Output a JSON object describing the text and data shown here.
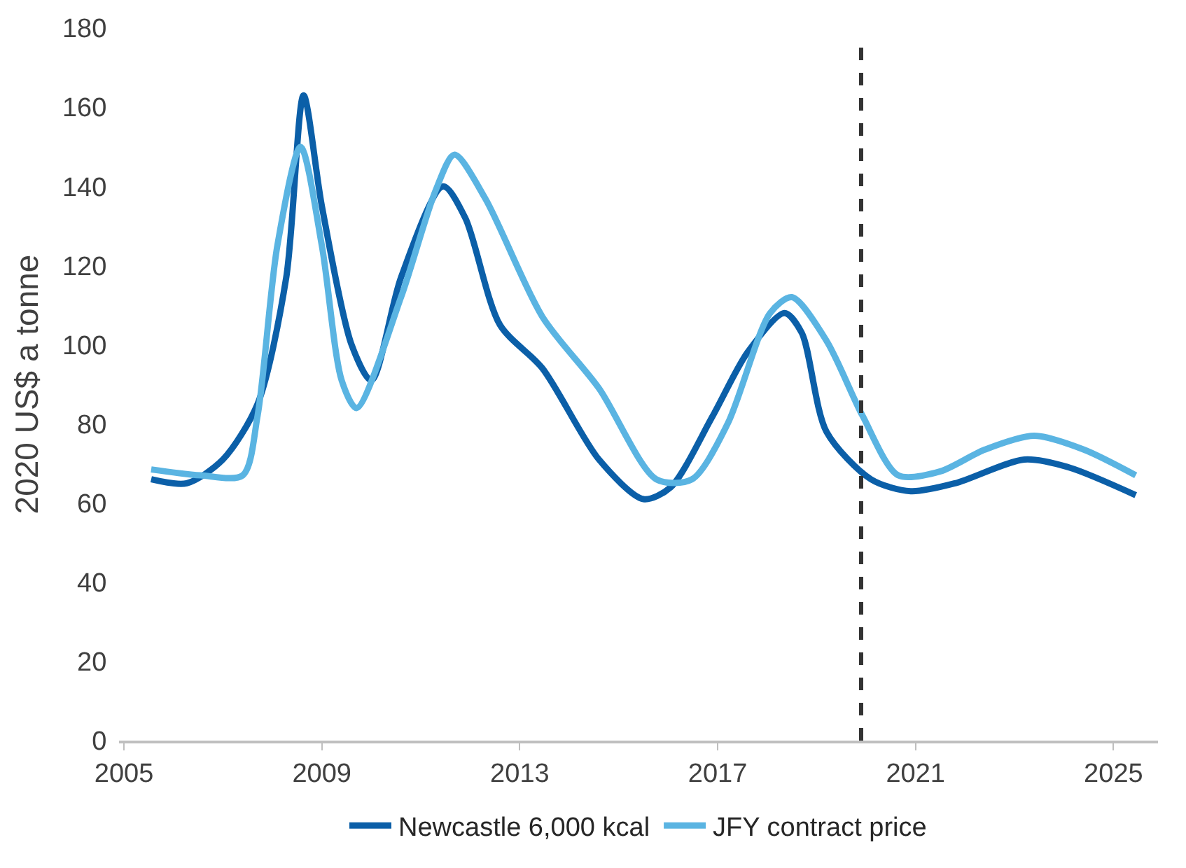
{
  "chart_data": {
    "type": "line",
    "ylabel": "2020 US$ a tonne",
    "xlim": [
      2004.9,
      2025.9
    ],
    "xticks": [
      2005,
      2009,
      2013,
      2017,
      2021,
      2025
    ],
    "ylim": [
      0,
      180
    ],
    "yticks": [
      0,
      20,
      40,
      60,
      80,
      100,
      120,
      140,
      160,
      180
    ],
    "legend": "bottom",
    "marker": "none",
    "line_style": "solid",
    "ref_lines": [
      {
        "axis": "x",
        "value": 2019.9,
        "color": "#333333",
        "line_style": "dashed"
      }
    ],
    "series": [
      {
        "name": "Newcastle 6,000 kcal",
        "color": "#0b5fa8",
        "x": [
          2005.55,
          2006.27,
          2007.0,
          2007.7,
          2008.28,
          2008.63,
          2009.0,
          2009.6,
          2010.0,
          2010.6,
          2011.45,
          2011.9,
          2012.6,
          2013.46,
          2014.6,
          2015.5,
          2016.05,
          2016.9,
          2017.6,
          2018.35,
          2018.7,
          2019.2,
          2020.1,
          2020.9,
          2021.8,
          2023.2,
          2024.1,
          2025.45
        ],
        "values": [
          66,
          65,
          71,
          85,
          117,
          163,
          135,
          100,
          91,
          117,
          140,
          132,
          105,
          94,
          71,
          61,
          64,
          82,
          98,
          108,
          103,
          78,
          66,
          63,
          65,
          71,
          69,
          62
        ]
      },
      {
        "name": "JFY contract price",
        "color": "#5ab4e2",
        "x": [
          2005.55,
          2006.55,
          2007.4,
          2007.7,
          2008.1,
          2008.57,
          2009.0,
          2009.4,
          2009.7,
          2010.6,
          2011.3,
          2011.68,
          2012.3,
          2013.46,
          2014.6,
          2015.76,
          2016.48,
          2017.2,
          2018.06,
          2018.5,
          2019.2,
          2019.93,
          2020.65,
          2021.5,
          2022.4,
          2023.4,
          2024.4,
          2025.45
        ],
        "values": [
          68.5,
          67,
          67,
          82,
          125,
          150,
          125,
          91,
          84,
          112,
          139,
          148,
          137,
          107,
          89,
          66,
          66,
          80,
          108,
          112,
          101,
          82,
          67,
          68,
          73.5,
          77,
          73.5,
          67
        ]
      }
    ]
  }
}
